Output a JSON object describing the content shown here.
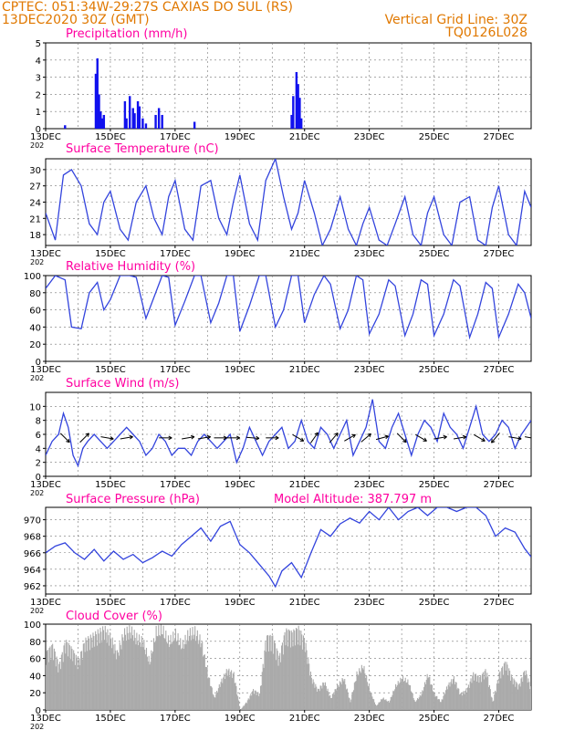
{
  "header": {
    "source_line": "CPTEC:   051:34W-29:27S   CAXIAS DO SUL (RS)",
    "date_line": "13DEC2020 30Z (GMT)",
    "grid_line": "Vertical Grid Line: 30Z",
    "model_code": "TQ0126L028"
  },
  "x_ticks": [
    "13DEC",
    "15DEC",
    "17DEC",
    "19DEC",
    "21DEC",
    "23DEC",
    "25DEC",
    "27DEC"
  ],
  "year_fragment": "202",
  "colors": {
    "line": "#3344dd",
    "bar": "#1111ee",
    "cloud": "#aaaaaa",
    "header": "#e07800",
    "title": "#ff00a0"
  },
  "chart_data": [
    {
      "type": "bar",
      "title": "Precipitation (mm/h)",
      "ylim": [
        0,
        5
      ],
      "yticks": [
        0,
        1,
        2,
        3,
        4,
        5
      ],
      "x_range_days": [
        13,
        28
      ],
      "x": [
        13.6,
        14.55,
        14.6,
        14.65,
        14.7,
        14.75,
        14.8,
        15.45,
        15.5,
        15.6,
        15.7,
        15.75,
        15.85,
        15.9,
        16.0,
        16.1,
        16.4,
        16.5,
        16.6,
        17.6,
        20.6,
        20.65,
        20.75,
        20.8,
        20.85,
        20.9
      ],
      "values": [
        0.2,
        3.2,
        4.1,
        2.0,
        1.0,
        0.6,
        0.8,
        1.6,
        0.6,
        1.9,
        1.2,
        0.9,
        1.6,
        1.3,
        0.6,
        0.3,
        0.8,
        1.2,
        0.8,
        0.4,
        0.8,
        1.9,
        3.3,
        2.6,
        1.8,
        0.6
      ]
    },
    {
      "type": "line",
      "title": "Surface Temperature (nC)",
      "ylim": [
        16,
        32
      ],
      "yticks": [
        18,
        21,
        24,
        27,
        30
      ],
      "x_range_days": [
        13,
        28
      ],
      "x": [
        13.0,
        13.3,
        13.55,
        13.8,
        14.1,
        14.35,
        14.6,
        14.8,
        15.0,
        15.3,
        15.55,
        15.8,
        16.1,
        16.35,
        16.6,
        16.8,
        17.0,
        17.3,
        17.55,
        17.8,
        18.1,
        18.35,
        18.6,
        18.8,
        19.0,
        19.3,
        19.55,
        19.8,
        20.1,
        20.35,
        20.6,
        20.8,
        21.0,
        21.3,
        21.55,
        21.8,
        22.1,
        22.35,
        22.6,
        22.8,
        23.0,
        23.3,
        23.55,
        23.8,
        24.1,
        24.35,
        24.6,
        24.8,
        25.0,
        25.3,
        25.55,
        25.8,
        26.1,
        26.35,
        26.6,
        26.8,
        27.0,
        27.3,
        27.55,
        27.8,
        28.0
      ],
      "values": [
        22,
        17,
        29,
        30,
        27,
        20,
        18,
        24,
        26,
        19,
        17,
        24,
        27,
        21,
        18,
        25,
        28,
        19,
        17,
        27,
        28,
        21,
        18,
        24,
        29,
        20,
        17,
        28,
        32,
        25,
        19,
        22,
        28,
        22,
        16,
        19,
        25,
        19,
        16,
        20,
        23,
        17,
        16,
        20,
        25,
        18,
        16,
        22,
        25,
        18,
        16,
        24,
        25,
        17,
        16,
        23,
        27,
        18,
        16,
        26,
        23
      ]
    },
    {
      "type": "line",
      "title": "Relative Humidity (%)",
      "ylim": [
        0,
        100
      ],
      "yticks": [
        0,
        20,
        40,
        60,
        80,
        100
      ],
      "x_range_days": [
        13,
        28
      ],
      "x": [
        13.0,
        13.3,
        13.6,
        13.8,
        14.1,
        14.35,
        14.6,
        14.8,
        15.0,
        15.3,
        15.6,
        15.8,
        16.1,
        16.35,
        16.6,
        16.8,
        17.0,
        17.3,
        17.6,
        17.8,
        18.1,
        18.35,
        18.6,
        18.8,
        19.0,
        19.3,
        19.6,
        19.8,
        20.1,
        20.35,
        20.6,
        20.8,
        21.0,
        21.3,
        21.6,
        21.8,
        22.1,
        22.35,
        22.6,
        22.8,
        23.0,
        23.3,
        23.6,
        23.8,
        24.1,
        24.35,
        24.6,
        24.8,
        25.0,
        25.3,
        25.6,
        25.8,
        26.1,
        26.35,
        26.6,
        26.8,
        27.0,
        27.3,
        27.6,
        27.8,
        28.0
      ],
      "values": [
        85,
        100,
        95,
        40,
        38,
        80,
        92,
        60,
        72,
        100,
        100,
        98,
        50,
        75,
        100,
        98,
        42,
        70,
        100,
        100,
        45,
        68,
        100,
        100,
        35,
        65,
        100,
        100,
        40,
        60,
        100,
        100,
        45,
        78,
        100,
        90,
        38,
        60,
        100,
        95,
        32,
        55,
        95,
        88,
        30,
        55,
        95,
        90,
        30,
        55,
        95,
        88,
        28,
        55,
        92,
        85,
        28,
        55,
        90,
        80,
        50
      ]
    },
    {
      "type": "line",
      "title": "Surface Wind (m/s)",
      "ylim": [
        0,
        12
      ],
      "yticks": [
        0,
        2,
        4,
        6,
        8,
        10
      ],
      "x_range_days": [
        13,
        28
      ],
      "x": [
        13.0,
        13.2,
        13.4,
        13.55,
        13.7,
        13.85,
        14.0,
        14.15,
        14.3,
        14.5,
        14.7,
        14.9,
        15.1,
        15.3,
        15.5,
        15.7,
        15.9,
        16.1,
        16.3,
        16.5,
        16.7,
        16.9,
        17.1,
        17.3,
        17.5,
        17.7,
        17.9,
        18.1,
        18.3,
        18.5,
        18.7,
        18.9,
        19.1,
        19.3,
        19.5,
        19.7,
        19.9,
        20.1,
        20.3,
        20.5,
        20.7,
        20.9,
        21.1,
        21.3,
        21.5,
        21.7,
        21.9,
        22.1,
        22.3,
        22.5,
        22.7,
        22.9,
        23.1,
        23.3,
        23.5,
        23.7,
        23.9,
        24.1,
        24.3,
        24.5,
        24.7,
        24.9,
        25.1,
        25.3,
        25.5,
        25.7,
        25.9,
        26.1,
        26.3,
        26.5,
        26.7,
        26.9,
        27.1,
        27.3,
        27.5,
        27.7,
        28.0
      ],
      "values": [
        3,
        5,
        6,
        9,
        7,
        3,
        1.5,
        4,
        5,
        6,
        5,
        4,
        5,
        6,
        7,
        6,
        5,
        3,
        4,
        6,
        5,
        3,
        4,
        4,
        3,
        5,
        6,
        5,
        4,
        5,
        6,
        2,
        4,
        7,
        5,
        3,
        5,
        6,
        7,
        4,
        5,
        8,
        5,
        4,
        7,
        6,
        4,
        6,
        8,
        3,
        5,
        7,
        11,
        5,
        4,
        7,
        9,
        6,
        3,
        6,
        8,
        7,
        5,
        9,
        7,
        6,
        4,
        7,
        10,
        6,
        5,
        6,
        8,
        7,
        4,
        6,
        8
      ],
      "arrows_x": [
        13.6,
        14.2,
        14.9,
        15.5,
        16.7,
        17.4,
        17.9,
        18.4,
        18.8,
        19.4,
        20.0,
        20.8,
        21.3,
        21.9,
        22.4,
        22.9,
        23.4,
        24.0,
        24.6,
        25.2,
        25.8,
        26.4,
        26.9,
        27.5,
        28.0
      ],
      "arrows_dir": [
        135,
        45,
        100,
        80,
        90,
        80,
        80,
        90,
        90,
        95,
        90,
        120,
        35,
        40,
        60,
        50,
        75,
        135,
        120,
        80,
        80,
        120,
        220,
        100,
        100
      ]
    },
    {
      "type": "line",
      "title": "Surface Pressure (hPa)",
      "annotation": "Model Altitude: 387.797 m",
      "ylim": [
        961,
        971.5
      ],
      "yticks": [
        962,
        964,
        966,
        968,
        970
      ],
      "x_range_days": [
        13,
        28
      ],
      "x": [
        13.0,
        13.3,
        13.6,
        13.9,
        14.2,
        14.5,
        14.8,
        15.1,
        15.4,
        15.7,
        16.0,
        16.3,
        16.6,
        16.9,
        17.2,
        17.5,
        17.8,
        18.1,
        18.4,
        18.7,
        19.0,
        19.3,
        19.6,
        19.9,
        20.1,
        20.3,
        20.6,
        20.9,
        21.2,
        21.5,
        21.8,
        22.1,
        22.4,
        22.7,
        23.0,
        23.3,
        23.6,
        23.9,
        24.2,
        24.5,
        24.8,
        25.1,
        25.4,
        25.7,
        26.0,
        26.3,
        26.6,
        26.9,
        27.2,
        27.5,
        27.8,
        28.0
      ],
      "values": [
        966.0,
        966.8,
        967.2,
        966.0,
        965.2,
        966.4,
        965.0,
        966.2,
        965.2,
        965.8,
        964.8,
        965.4,
        966.2,
        965.6,
        967.0,
        968.0,
        969.0,
        967.4,
        969.2,
        969.8,
        967.0,
        966.0,
        964.6,
        963.2,
        961.9,
        963.8,
        964.8,
        963.0,
        966.0,
        968.8,
        968.0,
        969.5,
        970.2,
        969.6,
        971.0,
        970.0,
        972.0,
        970.0,
        971.0,
        972.0,
        970.5,
        972.0,
        971.5,
        971.0,
        972.0,
        972.0,
        970.5,
        968.0,
        969.0,
        968.5,
        966.5,
        965.5
      ]
    },
    {
      "type": "area",
      "title": "Cloud Cover (%)",
      "ylim": [
        0,
        100
      ],
      "yticks": [
        0,
        20,
        40,
        60,
        80,
        100
      ],
      "x_range_days": [
        13,
        28
      ],
      "x": [
        13.0,
        13.2,
        13.4,
        13.6,
        13.8,
        14.0,
        14.2,
        14.4,
        14.6,
        14.8,
        15.0,
        15.2,
        15.4,
        15.6,
        15.8,
        16.0,
        16.2,
        16.4,
        16.6,
        16.8,
        17.0,
        17.2,
        17.4,
        17.6,
        17.8,
        18.0,
        18.2,
        18.4,
        18.6,
        18.8,
        19.0,
        19.2,
        19.4,
        19.6,
        19.8,
        20.0,
        20.2,
        20.4,
        20.6,
        20.8,
        21.0,
        21.2,
        21.4,
        21.6,
        21.8,
        22.0,
        22.2,
        22.4,
        22.6,
        22.8,
        23.0,
        23.2,
        23.4,
        23.6,
        23.8,
        24.0,
        24.2,
        24.4,
        24.6,
        24.8,
        25.0,
        25.2,
        25.4,
        25.6,
        25.8,
        26.0,
        26.2,
        26.4,
        26.6,
        26.8,
        27.0,
        27.2,
        27.4,
        27.6,
        27.8,
        28.0
      ],
      "values": [
        70,
        80,
        55,
        85,
        75,
        60,
        85,
        90,
        95,
        100,
        90,
        70,
        95,
        100,
        90,
        85,
        60,
        98,
        100,
        85,
        95,
        80,
        95,
        98,
        85,
        45,
        15,
        35,
        50,
        45,
        0,
        10,
        25,
        20,
        90,
        90,
        65,
        98,
        95,
        100,
        85,
        40,
        25,
        35,
        15,
        30,
        40,
        10,
        45,
        55,
        25,
        5,
        15,
        10,
        30,
        40,
        35,
        10,
        20,
        45,
        20,
        10,
        30,
        40,
        20,
        25,
        45,
        40,
        50,
        10,
        45,
        60,
        40,
        30,
        50,
        25
      ]
    }
  ]
}
